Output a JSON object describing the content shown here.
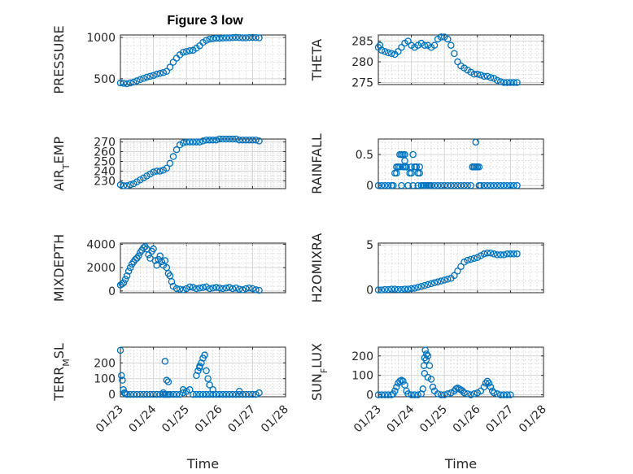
{
  "figure": {
    "title": "Figure 3 low"
  },
  "chart_data": [
    {
      "type": "scatter",
      "ylabel": "PRESSURE",
      "xlabel": "",
      "xlim": [
        0,
        5
      ],
      "ylim": [
        430,
        1030
      ],
      "yticks": [
        500,
        1000
      ],
      "xticks": [
        "01/23",
        "01/24",
        "01/25",
        "01/26",
        "01/27",
        "01/28"
      ],
      "show_xticklabels": false,
      "grid": true,
      "series": [
        {
          "x": [
            0,
            0.1,
            0.2,
            0.3,
            0.4,
            0.5,
            0.6,
            0.7,
            0.8,
            0.9,
            1.0,
            1.1,
            1.2,
            1.3,
            1.4,
            1.5,
            1.6,
            1.7,
            1.8,
            1.9,
            2.0,
            2.1,
            2.2,
            2.3,
            2.4,
            2.5,
            2.6,
            2.7,
            2.8,
            2.9,
            3.0,
            3.1,
            3.2,
            3.3,
            3.4,
            3.5,
            3.6,
            3.7,
            3.8,
            3.9,
            4.0,
            4.1,
            4.2
          ],
          "y": [
            450,
            445,
            440,
            450,
            460,
            475,
            490,
            505,
            520,
            530,
            540,
            555,
            565,
            575,
            590,
            640,
            700,
            750,
            790,
            820,
            830,
            840,
            845,
            870,
            900,
            940,
            965,
            980,
            985,
            990,
            990,
            992,
            995,
            995,
            998,
            1000,
            998,
            995,
            995,
            998,
            1000,
            998,
            995
          ]
        }
      ]
    },
    {
      "type": "scatter",
      "ylabel": "THETA",
      "xlabel": "",
      "xlim": [
        0,
        5
      ],
      "ylim": [
        274.5,
        286.5
      ],
      "yticks": [
        275,
        280,
        285
      ],
      "xticks": [
        "01/23",
        "01/24",
        "01/25",
        "01/26",
        "01/27",
        "01/28"
      ],
      "show_xticklabels": false,
      "grid": true,
      "series": [
        {
          "x": [
            0,
            0.05,
            0.1,
            0.2,
            0.3,
            0.4,
            0.5,
            0.6,
            0.7,
            0.8,
            0.9,
            1.0,
            1.1,
            1.2,
            1.3,
            1.4,
            1.5,
            1.6,
            1.7,
            1.8,
            1.9,
            2.0,
            2.1,
            2.2,
            2.3,
            2.4,
            2.5,
            2.6,
            2.7,
            2.8,
            2.9,
            3.0,
            3.1,
            3.2,
            3.3,
            3.4,
            3.5,
            3.6,
            3.7,
            3.8,
            3.9,
            4.0,
            4.1,
            4.2
          ],
          "y": [
            283.5,
            284,
            282.8,
            282.5,
            282.2,
            282,
            281.8,
            282.5,
            283.5,
            284.5,
            285,
            284,
            283.5,
            284,
            284.5,
            284,
            284,
            283.5,
            284,
            285.5,
            286,
            286,
            285.5,
            284,
            282,
            280,
            279,
            278.5,
            278,
            277.5,
            277,
            277,
            276.8,
            276.5,
            276.5,
            276.2,
            276,
            275.5,
            275.2,
            275,
            275,
            275,
            275,
            275
          ]
        }
      ]
    },
    {
      "type": "scatter",
      "ylabel": "AIR",
      "ylabel_sub": "T",
      "ylabel_rest": "EMP",
      "xlabel": "",
      "xlim": [
        0,
        5
      ],
      "ylim": [
        222,
        273
      ],
      "yticks": [
        230,
        240,
        250,
        260,
        270
      ],
      "xticks": [
        "01/23",
        "01/24",
        "01/25",
        "01/26",
        "01/27",
        "01/28"
      ],
      "show_xticklabels": false,
      "grid": true,
      "series": [
        {
          "x": [
            0,
            0.1,
            0.2,
            0.3,
            0.4,
            0.5,
            0.6,
            0.7,
            0.8,
            0.9,
            1.0,
            1.1,
            1.2,
            1.3,
            1.4,
            1.5,
            1.6,
            1.7,
            1.8,
            1.9,
            2.0,
            2.1,
            2.2,
            2.3,
            2.4,
            2.5,
            2.6,
            2.7,
            2.8,
            2.9,
            3.0,
            3.1,
            3.2,
            3.3,
            3.4,
            3.5,
            3.6,
            3.7,
            3.8,
            3.9,
            4.0,
            4.1,
            4.2
          ],
          "y": [
            226,
            225,
            225,
            226,
            227,
            229,
            231,
            233,
            235,
            237,
            239,
            240,
            240,
            241,
            243,
            248,
            255,
            262,
            267,
            269,
            270,
            270,
            270,
            270,
            270,
            271,
            272,
            272,
            272,
            272,
            273,
            273,
            273,
            273,
            273,
            273,
            272,
            272,
            272,
            272,
            272,
            272,
            271
          ]
        }
      ]
    },
    {
      "type": "scatter",
      "ylabel": "RAINFALL",
      "xlabel": "",
      "xlim": [
        0,
        5
      ],
      "ylim": [
        -0.05,
        0.75
      ],
      "yticks": [
        0,
        0.5
      ],
      "xticks": [
        "01/23",
        "01/24",
        "01/25",
        "01/26",
        "01/27",
        "01/28"
      ],
      "show_xticklabels": false,
      "grid": true,
      "series": [
        {
          "x": [
            0,
            0.1,
            0.2,
            0.3,
            0.4,
            0.45,
            0.5,
            0.55,
            0.6,
            0.65,
            0.7,
            0.75,
            0.8,
            0.85,
            0.9,
            0.95,
            1.0,
            1.05,
            1.1,
            1.15,
            1.2,
            1.25,
            1.3,
            1.35,
            1.4,
            1.45,
            1.5,
            1.55,
            1.6,
            1.7,
            1.8,
            1.9,
            2.0,
            2.1,
            2.2,
            2.3,
            2.4,
            2.5,
            2.6,
            2.7,
            2.8,
            2.85,
            2.9,
            2.95,
            3.0,
            3.05,
            3.1,
            3.2,
            3.3,
            3.4,
            3.5,
            3.6,
            3.7,
            3.8,
            3.9,
            4.0,
            4.1,
            4.2,
            0.55,
            0.6,
            0.7,
            0.75,
            0.8,
            0.85,
            1.0,
            1.05,
            1.15,
            1.2,
            1.25,
            2.85,
            2.9,
            2.95,
            3.0,
            3.05,
            0.65,
            0.7,
            0.8,
            1.1,
            1.15,
            2.95
          ],
          "y": [
            0,
            0,
            0,
            0,
            0,
            0,
            0.2,
            0.3,
            0.3,
            0.3,
            0,
            0.3,
            0.3,
            0.3,
            0,
            0.2,
            0.3,
            0,
            0.3,
            0.3,
            0,
            0.2,
            0,
            0,
            0,
            0,
            0,
            0,
            0,
            0,
            0,
            0,
            0,
            0,
            0,
            0,
            0,
            0,
            0,
            0,
            0,
            0.3,
            0.3,
            0.3,
            0.3,
            0,
            0,
            0,
            0,
            0,
            0,
            0,
            0,
            0,
            0,
            0,
            0,
            0,
            0.2,
            0.3,
            0.5,
            0.5,
            0.4,
            0.3,
            0.2,
            0.5,
            0.3,
            0.2,
            0.3,
            0.3,
            0.3,
            0.3,
            0.3,
            0.3,
            0.5,
            0.5,
            0.5,
            0.3,
            0.3,
            0.7
          ]
        }
      ]
    },
    {
      "type": "scatter",
      "ylabel": "MIXDEPTH",
      "xlabel": "",
      "xlim": [
        0,
        5
      ],
      "ylim": [
        -150,
        4100
      ],
      "yticks": [
        0,
        2000,
        4000
      ],
      "xticks": [
        "01/23",
        "01/24",
        "01/25",
        "01/26",
        "01/27",
        "01/28"
      ],
      "show_xticklabels": false,
      "grid": true,
      "series": [
        {
          "x": [
            0,
            0.05,
            0.1,
            0.15,
            0.2,
            0.25,
            0.3,
            0.35,
            0.4,
            0.45,
            0.5,
            0.55,
            0.6,
            0.65,
            0.7,
            0.75,
            0.8,
            0.85,
            0.9,
            0.95,
            1.0,
            1.05,
            1.1,
            1.15,
            1.2,
            1.25,
            1.3,
            1.35,
            1.4,
            1.45,
            1.5,
            1.55,
            1.6,
            1.7,
            1.8,
            1.9,
            2.0,
            2.1,
            2.2,
            2.3,
            2.4,
            2.5,
            2.6,
            2.7,
            2.8,
            2.9,
            3.0,
            3.1,
            3.2,
            3.3,
            3.4,
            3.5,
            3.6,
            3.7,
            3.8,
            3.9,
            4.0,
            4.1,
            4.2
          ],
          "y": [
            500,
            600,
            700,
            1000,
            1300,
            1700,
            2000,
            2300,
            2500,
            2700,
            2800,
            3000,
            3300,
            3500,
            3700,
            3800,
            3600,
            3100,
            2800,
            3400,
            3600,
            2600,
            2200,
            2700,
            3000,
            2500,
            2200,
            2600,
            2000,
            1500,
            1300,
            800,
            400,
            200,
            150,
            100,
            200,
            350,
            300,
            200,
            250,
            300,
            350,
            200,
            250,
            300,
            250,
            200,
            250,
            300,
            200,
            250,
            150,
            100,
            200,
            250,
            200,
            100,
            50
          ]
        }
      ]
    },
    {
      "type": "scatter",
      "ylabel": "H2OMIXRA",
      "xlabel": "",
      "xlim": [
        0,
        5
      ],
      "ylim": [
        -0.3,
        5.2
      ],
      "yticks": [
        0,
        5
      ],
      "xticks": [
        "01/23",
        "01/24",
        "01/25",
        "01/26",
        "01/27",
        "01/28"
      ],
      "show_xticklabels": false,
      "grid": true,
      "series": [
        {
          "x": [
            0,
            0.1,
            0.2,
            0.3,
            0.4,
            0.5,
            0.6,
            0.7,
            0.8,
            0.9,
            1.0,
            1.1,
            1.2,
            1.3,
            1.4,
            1.5,
            1.6,
            1.7,
            1.8,
            1.9,
            2.0,
            2.1,
            2.2,
            2.3,
            2.4,
            2.5,
            2.6,
            2.7,
            2.8,
            2.9,
            3.0,
            3.1,
            3.2,
            3.3,
            3.4,
            3.5,
            3.6,
            3.7,
            3.8,
            3.9,
            4.0,
            4.1,
            4.2
          ],
          "y": [
            0,
            0,
            0.05,
            0.05,
            0.1,
            0.1,
            0.05,
            0.05,
            0.1,
            0.1,
            0.15,
            0.2,
            0.3,
            0.4,
            0.5,
            0.6,
            0.7,
            0.8,
            0.9,
            1.0,
            1.1,
            1.2,
            1.3,
            1.6,
            2.1,
            2.6,
            3.1,
            3.3,
            3.4,
            3.5,
            3.6,
            3.8,
            4.0,
            4.1,
            4.1,
            4.0,
            3.9,
            3.9,
            3.9,
            4.0,
            4.0,
            4.0,
            4.0
          ]
        }
      ]
    },
    {
      "type": "scatter",
      "ylabel": "TERR",
      "ylabel_sub": "M",
      "ylabel_rest": "SL",
      "xlabel": "Time",
      "xlim": [
        0,
        5
      ],
      "ylim": [
        -15,
        300
      ],
      "yticks": [
        0,
        100,
        200
      ],
      "xticks": [
        "01/23",
        "01/24",
        "01/25",
        "01/26",
        "01/27",
        "01/28"
      ],
      "show_xticklabels": true,
      "grid": true,
      "series": [
        {
          "x": [
            0,
            0.03,
            0.06,
            0.09,
            0.12,
            0.15,
            0.2,
            0.3,
            0.4,
            0.5,
            0.6,
            0.7,
            0.8,
            0.9,
            1.0,
            1.1,
            1.2,
            1.3,
            1.35,
            1.4,
            1.45,
            1.5,
            1.6,
            1.7,
            1.8,
            1.9,
            2.0,
            2.1,
            2.2,
            2.3,
            2.4,
            2.5,
            2.6,
            2.7,
            2.8,
            2.9,
            3.0,
            3.1,
            3.2,
            3.3,
            3.4,
            3.5,
            3.6,
            3.7,
            3.8,
            3.9,
            4.0,
            4.1,
            4.2,
            2.35,
            2.4,
            2.45,
            2.5,
            2.55,
            2.6,
            2.65,
            2.4,
            2.3,
            1.35,
            1.4,
            1.45,
            1.3,
            2.7,
            2.8,
            1.9,
            3.6
          ],
          "y": [
            280,
            120,
            90,
            30,
            10,
            5,
            0,
            0,
            0,
            0,
            0,
            0,
            0,
            0,
            0,
            0,
            0,
            0,
            0,
            0,
            0,
            0,
            0,
            0,
            0,
            10,
            20,
            30,
            0,
            0,
            0,
            0,
            0,
            0,
            0,
            0,
            0,
            0,
            0,
            0,
            0,
            0,
            0,
            0,
            0,
            0,
            0,
            0,
            10,
            150,
            170,
            200,
            230,
            250,
            150,
            100,
            180,
            120,
            210,
            90,
            80,
            10,
            60,
            30,
            30,
            20
          ]
        }
      ]
    },
    {
      "type": "scatter",
      "ylabel": "SUN",
      "ylabel_sub": "F",
      "ylabel_rest": "LUX",
      "xlabel": "Time",
      "xlim": [
        0,
        5
      ],
      "ylim": [
        -10,
        245
      ],
      "yticks": [
        0,
        100,
        200
      ],
      "xticks": [
        "01/23",
        "01/24",
        "01/25",
        "01/26",
        "01/27",
        "01/28"
      ],
      "show_xticklabels": true,
      "grid": true,
      "series": [
        {
          "x": [
            0,
            0.1,
            0.2,
            0.3,
            0.4,
            0.45,
            0.5,
            0.55,
            0.6,
            0.65,
            0.7,
            0.75,
            0.8,
            0.85,
            0.9,
            1.0,
            1.1,
            1.2,
            1.3,
            1.35,
            1.4,
            1.45,
            1.5,
            1.55,
            1.6,
            1.65,
            1.7,
            1.8,
            1.9,
            2.0,
            2.1,
            2.2,
            2.3,
            2.35,
            2.4,
            2.45,
            2.5,
            2.55,
            2.6,
            2.7,
            2.8,
            2.9,
            3.0,
            3.1,
            3.2,
            3.25,
            3.3,
            3.35,
            3.4,
            3.45,
            3.5,
            3.6,
            3.7,
            3.8,
            3.9,
            4.0,
            1.38,
            1.42,
            1.46,
            1.4,
            1.5
          ],
          "y": [
            0,
            0,
            0,
            0,
            0,
            5,
            20,
            40,
            60,
            70,
            75,
            70,
            50,
            20,
            5,
            0,
            0,
            0,
            5,
            30,
            110,
            180,
            200,
            150,
            80,
            40,
            20,
            5,
            0,
            0,
            5,
            10,
            20,
            30,
            35,
            30,
            25,
            20,
            10,
            5,
            0,
            5,
            10,
            20,
            40,
            60,
            70,
            60,
            40,
            20,
            10,
            5,
            0,
            0,
            0,
            0,
            150,
            230,
            210,
            190,
            90
          ]
        }
      ]
    }
  ]
}
